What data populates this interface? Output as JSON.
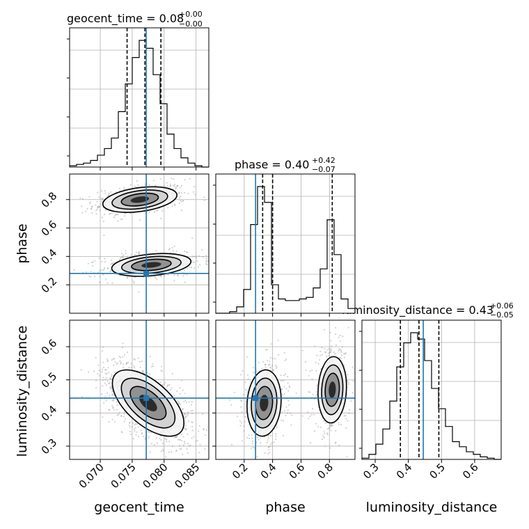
{
  "chart_data": {
    "type": "corner",
    "parameters": [
      "geocent_time",
      "phase",
      "luminosity_distance"
    ],
    "truths": {
      "geocent_time": 0.0772,
      "phase": 0.28,
      "luminosity_distance": 0.445
    },
    "truth_color": "#1f77b4",
    "axes": {
      "geocent_time": {
        "lim": [
          0.0652,
          0.087
        ],
        "ticks": [
          0.07,
          0.075,
          0.08,
          0.085
        ],
        "tick_labels": [
          "0.070",
          "0.075",
          "0.080",
          "0.085"
        ]
      },
      "phase": {
        "lim": [
          0.0,
          0.98
        ],
        "ticks": [
          0.2,
          0.4,
          0.6,
          0.8
        ],
        "tick_labels": [
          "0.2",
          "0.4",
          "0.6",
          "0.8"
        ]
      },
      "luminosity_distance": {
        "lim": [
          0.26,
          0.68
        ],
        "ticks": [
          0.3,
          0.4,
          0.5,
          0.6
        ],
        "tick_labels": [
          "0.3",
          "0.4",
          "0.5",
          "0.6"
        ]
      }
    },
    "titles": [
      {
        "param": "geocent_time",
        "main": "geocent_time = 0.08",
        "sup": "+0.00",
        "sub": "−0.00"
      },
      {
        "param": "phase",
        "main": "phase = 0.40",
        "sup": "+0.42",
        "sub": "−0.07"
      },
      {
        "param": "luminosity_distance",
        "main": "luminosity_distance = 0.43",
        "sup": "+0.06",
        "sub": "−0.05"
      }
    ],
    "quantiles": {
      "geocent_time": [
        0.0742,
        0.077,
        0.0795
      ],
      "phase": [
        0.33,
        0.4,
        0.82
      ],
      "luminosity_distance": [
        0.376,
        0.432,
        0.492
      ]
    },
    "histograms": {
      "geocent_time": {
        "edges_min": 0.0652,
        "edges_max": 0.087,
        "counts": [
          1,
          2,
          3,
          5,
          9,
          14,
          22,
          42,
          63,
          83,
          96,
          90,
          70,
          48,
          25,
          14,
          7,
          3,
          1,
          0
        ]
      },
      "phase": {
        "edges_min": 0.0,
        "edges_max": 0.98,
        "counts": [
          0,
          0,
          1,
          4,
          15,
          56,
          80,
          70,
          18,
          9,
          8,
          8,
          9,
          10,
          16,
          28,
          59,
          37,
          9,
          3
        ]
      },
      "luminosity_distance": {
        "edges_min": 0.26,
        "edges_max": 0.68,
        "counts": [
          1,
          4,
          12,
          24,
          46,
          73,
          92,
          100,
          95,
          78,
          56,
          40,
          26,
          14,
          10,
          6,
          4,
          2,
          1,
          0
        ]
      }
    },
    "contours_2d": [
      {
        "x": "geocent_time",
        "y": "phase",
        "blobs": [
          {
            "cx": 0.0762,
            "cy": 0.8,
            "sx": 0.0029,
            "sy": 0.045,
            "rho": 0.35,
            "w": 0.5
          },
          {
            "cx": 0.078,
            "cy": 0.34,
            "sx": 0.0031,
            "sy": 0.04,
            "rho": 0.3,
            "w": 0.5
          }
        ]
      },
      {
        "x": "geocent_time",
        "y": "luminosity_distance",
        "blobs": [
          {
            "cx": 0.0775,
            "cy": 0.43,
            "sx": 0.0028,
            "sy": 0.05,
            "rho": -0.6,
            "w": 1.0
          }
        ]
      },
      {
        "x": "phase",
        "y": "luminosity_distance",
        "blobs": [
          {
            "cx": 0.34,
            "cy": 0.43,
            "sx": 0.06,
            "sy": 0.05,
            "rho": 0.1,
            "w": 0.55
          },
          {
            "cx": 0.82,
            "cy": 0.47,
            "sx": 0.05,
            "sy": 0.05,
            "rho": 0.1,
            "w": 0.45
          }
        ]
      }
    ],
    "contour_levels": [
      "0.5-sigma",
      "1-sigma",
      "1.5-sigma",
      "2-sigma"
    ],
    "xlabels": [
      "geocent_time",
      "phase",
      "luminosity_distance"
    ],
    "ylabels": [
      "phase",
      "luminosity_distance"
    ]
  }
}
